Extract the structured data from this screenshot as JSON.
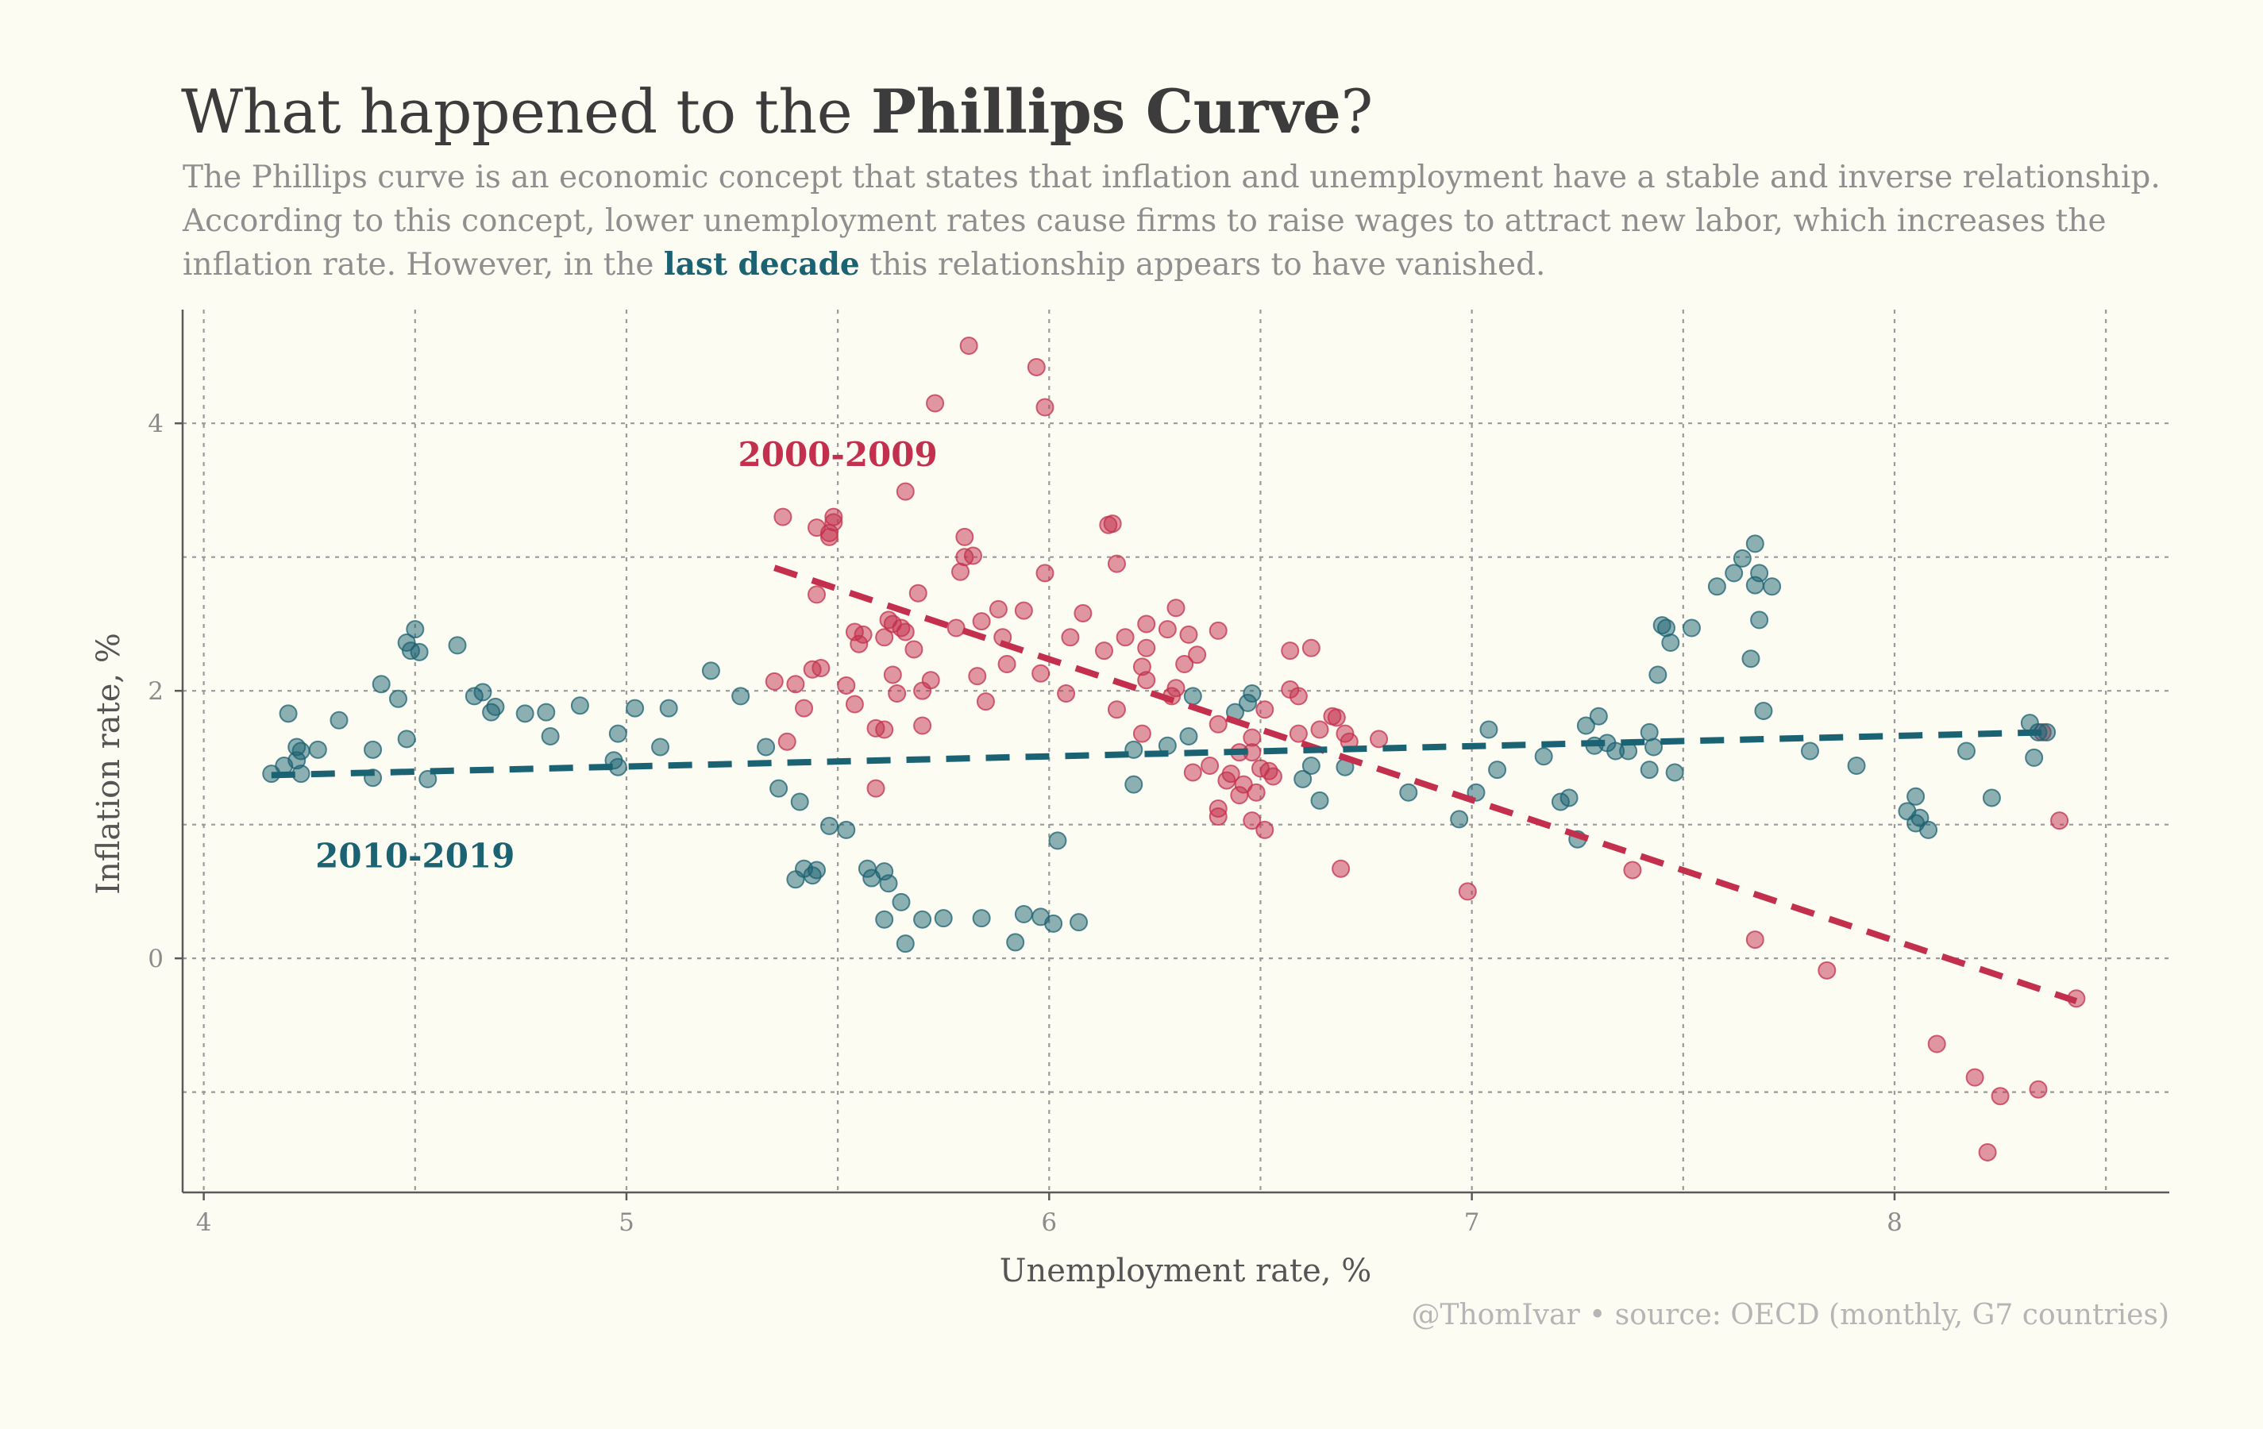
{
  "header": {
    "title_prefix": "What happened to the ",
    "title_bold": "Phillips Curve",
    "title_suffix": "?",
    "subtitle_prefix": "The Phillips curve is an economic concept that states that inflation and unemployment have a stable and inverse relationship. According to this concept, lower unemployment rates cause firms to raise wages to attract new labor, which increases the inflation rate. However, in the ",
    "subtitle_highlight": "last decade",
    "subtitle_suffix": " this relationship appears to have vanished."
  },
  "caption": "@ThomIvar • source: OECD (monthly, G7 countries)",
  "chart_data": {
    "type": "scatter",
    "xlabel": "Unemployment rate, %",
    "ylabel": "Inflation rate, %",
    "xlim": [
      3.95,
      8.65
    ],
    "ylim": [
      -1.75,
      4.85
    ],
    "x_ticks": [
      4,
      5,
      6,
      7,
      8
    ],
    "y_ticks": [
      0,
      2,
      4
    ],
    "grid": true,
    "colors": {
      "s2000": "#c3304d",
      "s2010": "#1b6272"
    },
    "annotations": [
      {
        "text": "2000-2009",
        "x": 5.5,
        "y": 3.68,
        "series": "s2000"
      },
      {
        "text": "2010-2019",
        "x": 4.5,
        "y": 0.68,
        "series": "s2010"
      }
    ],
    "series": [
      {
        "key": "s2000",
        "points": [
          [
            5.35,
            2.07
          ],
          [
            5.37,
            3.3
          ],
          [
            5.38,
            1.62
          ],
          [
            5.4,
            2.05
          ],
          [
            5.42,
            1.87
          ],
          [
            5.44,
            2.16
          ],
          [
            5.45,
            2.72
          ],
          [
            5.45,
            3.22
          ],
          [
            5.46,
            2.17
          ],
          [
            5.48,
            3.18
          ],
          [
            5.48,
            3.15
          ],
          [
            5.49,
            3.3
          ],
          [
            5.49,
            3.26
          ],
          [
            5.52,
            2.04
          ],
          [
            5.54,
            1.9
          ],
          [
            5.54,
            2.44
          ],
          [
            5.55,
            2.35
          ],
          [
            5.56,
            2.42
          ],
          [
            5.59,
            1.27
          ],
          [
            5.59,
            1.72
          ],
          [
            5.61,
            1.71
          ],
          [
            5.61,
            2.4
          ],
          [
            5.62,
            2.53
          ],
          [
            5.63,
            2.5
          ],
          [
            5.63,
            2.12
          ],
          [
            5.64,
            1.98
          ],
          [
            5.65,
            2.47
          ],
          [
            5.66,
            3.49
          ],
          [
            5.66,
            2.44
          ],
          [
            5.68,
            2.31
          ],
          [
            5.69,
            2.73
          ],
          [
            5.7,
            1.74
          ],
          [
            5.7,
            2.0
          ],
          [
            5.72,
            2.08
          ],
          [
            5.73,
            4.15
          ],
          [
            5.78,
            2.47
          ],
          [
            5.79,
            2.89
          ],
          [
            5.8,
            3.15
          ],
          [
            5.8,
            3.0
          ],
          [
            5.81,
            4.58
          ],
          [
            5.82,
            3.01
          ],
          [
            5.83,
            2.11
          ],
          [
            5.84,
            2.52
          ],
          [
            5.85,
            1.92
          ],
          [
            5.88,
            2.61
          ],
          [
            5.89,
            2.4
          ],
          [
            5.9,
            2.2
          ],
          [
            5.94,
            2.6
          ],
          [
            5.97,
            4.42
          ],
          [
            5.98,
            2.13
          ],
          [
            5.99,
            2.88
          ],
          [
            5.99,
            4.12
          ],
          [
            6.04,
            1.98
          ],
          [
            6.05,
            2.4
          ],
          [
            6.08,
            2.58
          ],
          [
            6.13,
            2.3
          ],
          [
            6.14,
            3.24
          ],
          [
            6.15,
            3.25
          ],
          [
            6.16,
            1.86
          ],
          [
            6.16,
            2.95
          ],
          [
            6.18,
            2.4
          ],
          [
            6.22,
            1.68
          ],
          [
            6.22,
            2.18
          ],
          [
            6.23,
            2.5
          ],
          [
            6.23,
            2.32
          ],
          [
            6.23,
            2.08
          ],
          [
            6.28,
            2.46
          ],
          [
            6.29,
            1.96
          ],
          [
            6.3,
            2.62
          ],
          [
            6.3,
            2.02
          ],
          [
            6.32,
            2.2
          ],
          [
            6.33,
            2.42
          ],
          [
            6.34,
            1.39
          ],
          [
            6.35,
            2.27
          ],
          [
            6.38,
            1.44
          ],
          [
            6.4,
            2.45
          ],
          [
            6.4,
            1.06
          ],
          [
            6.4,
            1.12
          ],
          [
            6.4,
            1.75
          ],
          [
            6.42,
            1.33
          ],
          [
            6.43,
            1.38
          ],
          [
            6.45,
            1.22
          ],
          [
            6.45,
            1.54
          ],
          [
            6.46,
            1.3
          ],
          [
            6.48,
            1.54
          ],
          [
            6.48,
            1.65
          ],
          [
            6.48,
            1.03
          ],
          [
            6.49,
            1.24
          ],
          [
            6.5,
            1.42
          ],
          [
            6.51,
            0.96
          ],
          [
            6.51,
            1.86
          ],
          [
            6.52,
            1.4
          ],
          [
            6.53,
            1.36
          ],
          [
            6.57,
            2.3
          ],
          [
            6.57,
            2.01
          ],
          [
            6.59,
            1.68
          ],
          [
            6.59,
            1.96
          ],
          [
            6.62,
            2.32
          ],
          [
            6.64,
            1.71
          ],
          [
            6.67,
            1.81
          ],
          [
            6.68,
            1.8
          ],
          [
            6.69,
            0.67
          ],
          [
            6.7,
            1.68
          ],
          [
            6.71,
            1.62
          ],
          [
            6.78,
            1.64
          ],
          [
            6.99,
            0.5
          ],
          [
            7.38,
            0.66
          ],
          [
            7.67,
            0.14
          ],
          [
            7.84,
            -0.09
          ],
          [
            8.1,
            -0.64
          ],
          [
            8.19,
            -0.89
          ],
          [
            8.22,
            -1.45
          ],
          [
            8.25,
            -1.03
          ],
          [
            8.34,
            -0.98
          ],
          [
            8.35,
            1.69
          ],
          [
            8.39,
            1.03
          ],
          [
            8.43,
            -0.3
          ]
        ]
      },
      {
        "key": "s2010",
        "points": [
          [
            4.16,
            1.38
          ],
          [
            4.19,
            1.44
          ],
          [
            4.2,
            1.83
          ],
          [
            4.22,
            1.58
          ],
          [
            4.22,
            1.48
          ],
          [
            4.23,
            1.38
          ],
          [
            4.23,
            1.55
          ],
          [
            4.27,
            1.56
          ],
          [
            4.32,
            1.78
          ],
          [
            4.4,
            1.35
          ],
          [
            4.4,
            1.56
          ],
          [
            4.42,
            2.05
          ],
          [
            4.46,
            1.94
          ],
          [
            4.48,
            1.64
          ],
          [
            4.48,
            2.36
          ],
          [
            4.49,
            2.3
          ],
          [
            4.5,
            2.46
          ],
          [
            4.51,
            2.29
          ],
          [
            4.53,
            1.34
          ],
          [
            4.6,
            2.34
          ],
          [
            4.64,
            1.96
          ],
          [
            4.66,
            1.99
          ],
          [
            4.68,
            1.84
          ],
          [
            4.69,
            1.88
          ],
          [
            4.76,
            1.83
          ],
          [
            4.81,
            1.84
          ],
          [
            4.82,
            1.66
          ],
          [
            4.89,
            1.89
          ],
          [
            4.97,
            1.48
          ],
          [
            4.98,
            1.68
          ],
          [
            4.98,
            1.43
          ],
          [
            5.02,
            1.87
          ],
          [
            5.08,
            1.58
          ],
          [
            5.1,
            1.87
          ],
          [
            5.2,
            2.15
          ],
          [
            5.27,
            1.96
          ],
          [
            5.33,
            1.58
          ],
          [
            5.36,
            1.27
          ],
          [
            5.4,
            0.59
          ],
          [
            5.41,
            1.17
          ],
          [
            5.42,
            0.67
          ],
          [
            5.44,
            0.62
          ],
          [
            5.45,
            0.66
          ],
          [
            5.48,
            0.99
          ],
          [
            5.52,
            0.96
          ],
          [
            5.57,
            0.67
          ],
          [
            5.58,
            0.6
          ],
          [
            5.61,
            0.65
          ],
          [
            5.61,
            0.29
          ],
          [
            5.62,
            0.56
          ],
          [
            5.65,
            0.42
          ],
          [
            5.66,
            0.11
          ],
          [
            5.7,
            0.29
          ],
          [
            5.75,
            0.3
          ],
          [
            5.84,
            0.3
          ],
          [
            5.92,
            0.12
          ],
          [
            5.94,
            0.33
          ],
          [
            5.98,
            0.31
          ],
          [
            6.01,
            0.26
          ],
          [
            6.02,
            0.88
          ],
          [
            6.07,
            0.27
          ],
          [
            6.2,
            1.56
          ],
          [
            6.2,
            1.3
          ],
          [
            6.28,
            1.59
          ],
          [
            6.33,
            1.66
          ],
          [
            6.34,
            1.96
          ],
          [
            6.44,
            1.84
          ],
          [
            6.47,
            1.91
          ],
          [
            6.48,
            1.98
          ],
          [
            6.6,
            1.34
          ],
          [
            6.62,
            1.44
          ],
          [
            6.64,
            1.18
          ],
          [
            6.7,
            1.43
          ],
          [
            6.85,
            1.24
          ],
          [
            6.97,
            1.04
          ],
          [
            7.01,
            1.24
          ],
          [
            7.04,
            1.71
          ],
          [
            7.06,
            1.41
          ],
          [
            7.17,
            1.51
          ],
          [
            7.21,
            1.17
          ],
          [
            7.23,
            1.2
          ],
          [
            7.25,
            0.89
          ],
          [
            7.27,
            1.74
          ],
          [
            7.29,
            1.59
          ],
          [
            7.3,
            1.81
          ],
          [
            7.32,
            1.61
          ],
          [
            7.34,
            1.55
          ],
          [
            7.37,
            1.55
          ],
          [
            7.42,
            1.41
          ],
          [
            7.42,
            1.69
          ],
          [
            7.43,
            1.58
          ],
          [
            7.44,
            2.12
          ],
          [
            7.45,
            2.49
          ],
          [
            7.46,
            2.47
          ],
          [
            7.47,
            2.36
          ],
          [
            7.48,
            1.39
          ],
          [
            7.52,
            2.47
          ],
          [
            7.58,
            2.78
          ],
          [
            7.62,
            2.88
          ],
          [
            7.64,
            2.99
          ],
          [
            7.66,
            2.24
          ],
          [
            7.67,
            2.79
          ],
          [
            7.67,
            3.1
          ],
          [
            7.68,
            2.88
          ],
          [
            7.68,
            2.53
          ],
          [
            7.69,
            1.85
          ],
          [
            7.71,
            2.78
          ],
          [
            7.8,
            1.55
          ],
          [
            7.91,
            1.44
          ],
          [
            8.03,
            1.1
          ],
          [
            8.05,
            1.21
          ],
          [
            8.05,
            1.01
          ],
          [
            8.06,
            1.05
          ],
          [
            8.08,
            0.96
          ],
          [
            8.17,
            1.55
          ],
          [
            8.23,
            1.2
          ],
          [
            8.32,
            1.76
          ],
          [
            8.33,
            1.5
          ],
          [
            8.34,
            1.69
          ],
          [
            8.36,
            1.69
          ]
        ]
      }
    ],
    "trend_lines": [
      {
        "series": "s2000",
        "from": [
          5.35,
          2.92
        ],
        "to": [
          8.43,
          -0.32
        ]
      },
      {
        "series": "s2010",
        "from": [
          4.16,
          1.37
        ],
        "to": [
          8.36,
          1.69
        ]
      }
    ]
  }
}
